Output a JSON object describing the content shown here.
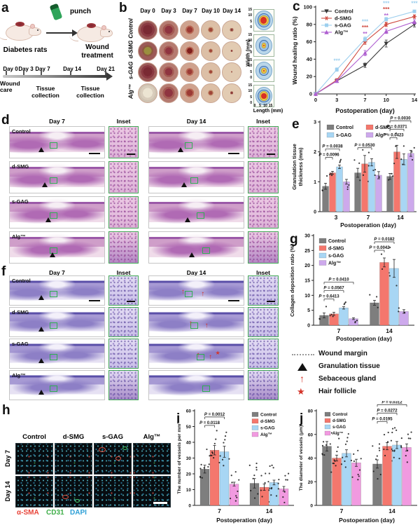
{
  "letters": {
    "a": "a",
    "b": "b",
    "c": "c",
    "d": "d",
    "e": "e",
    "f": "f",
    "g": "g",
    "h": "h",
    "i": "i",
    "j": "j"
  },
  "panel_a": {
    "punch": "punch",
    "diabetes_label": "Diabetes rats",
    "treatment_label": "Wound treatment",
    "days": [
      "Day 0",
      "Day 3",
      "Day 7",
      "Day 14",
      "Day 21"
    ],
    "note_wound_care": "Wound care",
    "note_tissue_1": "Tissue collection",
    "note_tissue_2": "Tissue collection"
  },
  "panel_b": {
    "col_headers": [
      "Day 0",
      "Day 3",
      "Day 7",
      "Day 10",
      "Day 14"
    ],
    "row_labels": [
      "Control",
      "d-SMG",
      "s-GAG",
      "Alg™"
    ],
    "width_label": "Width (mm)",
    "length_label": "Length (mm)",
    "trace_yticks": [
      "15",
      "10",
      "5",
      "0"
    ],
    "trace_xticks": [
      "0",
      "5",
      "10",
      "15"
    ]
  },
  "panel_d": {
    "headers": [
      "Day 7",
      "Inset",
      "Day 14",
      "Inset"
    ],
    "row_labels": [
      "Control",
      "d-SMG",
      "s-GAG",
      "Alg™"
    ]
  },
  "panel_f": {
    "headers": [
      "Day 7",
      "Inset",
      "Day 14",
      "Inset"
    ],
    "row_labels": [
      "Control",
      "d-SMG",
      "s-GAG",
      "Alg™"
    ]
  },
  "marker_legend": [
    {
      "icon": "dotted-line",
      "label": "Wound margin"
    },
    {
      "icon": "black-triangle",
      "label": "Granulation tissue"
    },
    {
      "icon": "red-arrow",
      "label": "Sebaceous gland"
    },
    {
      "icon": "red-star",
      "label": "Hair follicle"
    }
  ],
  "panel_h": {
    "col_headers": [
      "Control",
      "d-SMG",
      "s-GAG",
      "Alg™"
    ],
    "row_labels": [
      "Day 7",
      "Day 14"
    ],
    "stains": [
      {
        "label": "α-SMA",
        "color": "#e8453a"
      },
      {
        "label": "CD31",
        "color": "#3fae49"
      },
      {
        "label": "DAPI",
        "color": "#2d9fd6"
      }
    ]
  },
  "chart_data": [
    {
      "id": "c",
      "type": "line",
      "ylabel": "Wound healing ratio (%)",
      "xlabel": "Postoperation (day)",
      "x": [
        0,
        3,
        7,
        10,
        14
      ],
      "xtick_labels": [
        "0",
        "3",
        "7",
        "10",
        "14"
      ],
      "ylim": [
        0,
        100
      ],
      "yticks": [
        0,
        20,
        40,
        60,
        80,
        100
      ],
      "legend_position": "top-left",
      "grid": false,
      "series": [
        {
          "name": "Control",
          "color": "#3a3a3a",
          "marker": "triangle-down",
          "values": [
            0,
            15,
            33,
            58,
            80
          ],
          "errors": [
            0,
            1.5,
            2.5,
            4,
            3
          ]
        },
        {
          "name": "d-SMG",
          "color": "#cf4a40",
          "marker": "star",
          "values": [
            0,
            16,
            60,
            80,
            89
          ],
          "errors": [
            0,
            1.5,
            3,
            2.5,
            2
          ]
        },
        {
          "name": "s-GAG",
          "color": "#9dcfee",
          "marker": "square",
          "values": [
            0,
            28,
            63,
            86,
            95
          ],
          "errors": [
            0,
            2,
            2.5,
            2,
            1.5
          ]
        },
        {
          "name": "Alg™",
          "color": "#ae5ed0",
          "marker": "triangle-up",
          "values": [
            0,
            15,
            47,
            72,
            83
          ],
          "errors": [
            0,
            1.5,
            3,
            2.5,
            2.5
          ]
        }
      ],
      "annotations": [
        {
          "x": 3,
          "y": 36,
          "text": "***",
          "color": "#9dcfee"
        },
        {
          "x": 7,
          "y": 81,
          "text": "***",
          "color": "#9dcfee"
        },
        {
          "x": 7,
          "y": 74,
          "text": "***",
          "color": "#cf4a40"
        },
        {
          "x": 7,
          "y": 67,
          "text": "**",
          "color": "#ae5ed0"
        },
        {
          "x": 10,
          "y": 102,
          "text": "***",
          "color": "#9dcfee"
        },
        {
          "x": 10,
          "y": 95,
          "text": "***",
          "color": "#cf4a40"
        },
        {
          "x": 10,
          "y": 88,
          "text": "**",
          "color": "#ae5ed0"
        },
        {
          "x": 14,
          "y": 102,
          "text": "***",
          "color": "#9dcfee"
        }
      ]
    },
    {
      "id": "e",
      "type": "bar",
      "ylabel": "Granulation tissue\nthickness (mm)",
      "xlabel": "Postoperation (day)",
      "categories": [
        "3",
        "7",
        "14"
      ],
      "ylim": [
        0,
        3
      ],
      "yticks": [
        0,
        1,
        2,
        3
      ],
      "legend_position": "top-2col",
      "scatter": 3,
      "series": [
        {
          "name": "Control",
          "color": "#7e7e7e",
          "values": [
            0.85,
            1.3,
            1.18
          ],
          "errors": [
            0.1,
            0.15,
            0.1
          ]
        },
        {
          "name": "d-SMG",
          "color": "#f4776d",
          "values": [
            1.3,
            1.6,
            2.0
          ],
          "errors": [
            0.05,
            0.28,
            0.22
          ]
        },
        {
          "name": "s-GAG",
          "color": "#a8d6f4",
          "values": [
            1.5,
            1.65,
            1.75
          ],
          "errors": [
            0.06,
            0.12,
            0.18
          ]
        },
        {
          "name": "Alg™",
          "color": "#cda9ec",
          "values": [
            1.0,
            1.22,
            1.95
          ],
          "errors": [
            0.08,
            0.12,
            0.1
          ]
        }
      ],
      "pvalues": [
        {
          "group": 0,
          "from": 0,
          "to": 2,
          "text": "P = 0.0038"
        },
        {
          "group": 0,
          "from": 0,
          "to": 1,
          "text": "P = 0.0096"
        },
        {
          "group": 1,
          "from": 0,
          "to": 2,
          "text": "P = 0.0530"
        },
        {
          "group": 2,
          "from": 0,
          "to": 3,
          "text": "P = 0.0030"
        },
        {
          "group": 2,
          "from": 0,
          "to": 2,
          "text": "P = 0.0371"
        },
        {
          "group": 2,
          "from": 0,
          "to": 1,
          "text": "P = 0.0423"
        }
      ]
    },
    {
      "id": "g",
      "type": "bar",
      "ylabel": "Collagen deposition ratio (%)",
      "xlabel": "Postoperation (day)",
      "categories": [
        "7",
        "14"
      ],
      "ylim": [
        0,
        30
      ],
      "yticks": [
        0,
        5,
        10,
        15,
        20,
        25,
        30
      ],
      "legend_position": "left-col",
      "scatter": 3,
      "series": [
        {
          "name": "Control",
          "color": "#7e7e7e",
          "values": [
            3.3,
            7.5
          ],
          "errors": [
            0.8,
            0.8
          ]
        },
        {
          "name": "d-SMG",
          "color": "#f4776d",
          "values": [
            3.8,
            21
          ],
          "errors": [
            0.5,
            1.5
          ]
        },
        {
          "name": "s-GAG",
          "color": "#a8d6f4",
          "values": [
            5.8,
            19
          ],
          "errors": [
            0.4,
            3
          ]
        },
        {
          "name": "Alg™",
          "color": "#cda9ec",
          "values": [
            2.2,
            4.6
          ],
          "errors": [
            0.3,
            0.6
          ]
        }
      ],
      "pvalues": [
        {
          "group": 0,
          "from": 0,
          "to": 3,
          "text": "P = 0.0410"
        },
        {
          "group": 0,
          "from": 0,
          "to": 2,
          "text": "P = 0.0567"
        },
        {
          "group": 0,
          "from": 0,
          "to": 1,
          "text": "P = 0.6413"
        },
        {
          "group": 1,
          "from": 0,
          "to": 2,
          "text": "P = 0.0182"
        },
        {
          "group": 1,
          "from": 0,
          "to": 1,
          "text": "P = 0.0042"
        }
      ]
    },
    {
      "id": "i",
      "type": "bar",
      "ylabel": "The number of vessels per mm²",
      "xlabel": "Postoperation (day)",
      "categories": [
        "7",
        "14"
      ],
      "ylim": [
        0,
        60
      ],
      "yticks": [
        0,
        10,
        20,
        30,
        40,
        50,
        60
      ],
      "legend_position": "right-col",
      "scatter": 9,
      "series": [
        {
          "name": "Control",
          "color": "#7e7e7e",
          "values": [
            23,
            14
          ],
          "errors": [
            2.5,
            3
          ]
        },
        {
          "name": "d-SMG",
          "color": "#f4776d",
          "values": [
            35,
            11.5
          ],
          "errors": [
            3,
            2
          ]
        },
        {
          "name": "s-GAG",
          "color": "#a8d6f4",
          "values": [
            34,
            14.5
          ],
          "errors": [
            3.5,
            1.5
          ]
        },
        {
          "name": "Alg™",
          "color": "#f19ae0",
          "values": [
            13.5,
            10.5
          ],
          "errors": [
            1.2,
            1.5
          ]
        }
      ],
      "pvalues": [
        {
          "group": 0,
          "from": 0,
          "to": 2,
          "text": "P = 0.0012"
        },
        {
          "group": 0,
          "from": 0,
          "to": 1,
          "text": "P = 0.0118"
        }
      ]
    },
    {
      "id": "j",
      "type": "bar",
      "ylabel": "The diameter of vessels (μm)",
      "xlabel": "Postoperation (day)",
      "categories": [
        "7",
        "14"
      ],
      "ylim": [
        0,
        80
      ],
      "yticks": [
        0,
        20,
        40,
        60,
        80
      ],
      "legend_position": "left-col-small",
      "scatter": 9,
      "series": [
        {
          "name": "Control",
          "color": "#7e7e7e",
          "values": [
            50,
            35
          ],
          "errors": [
            4,
            3.5
          ]
        },
        {
          "name": "d-SMG",
          "color": "#f4776d",
          "values": [
            40,
            50
          ],
          "errors": [
            2.5,
            3
          ]
        },
        {
          "name": "s-GAG",
          "color": "#a8d6f4",
          "values": [
            44,
            51
          ],
          "errors": [
            3,
            3
          ]
        },
        {
          "name": "Alg™",
          "color": "#f19ae0",
          "values": [
            36,
            49
          ],
          "errors": [
            3,
            3
          ]
        }
      ],
      "pvalues": [
        {
          "group": 1,
          "from": 0,
          "to": 3,
          "text": "P = 0.0312"
        },
        {
          "group": 1,
          "from": 0,
          "to": 2,
          "text": "P = 0.0272"
        },
        {
          "group": 1,
          "from": 0,
          "to": 1,
          "text": "P = 0.0195"
        }
      ]
    }
  ]
}
